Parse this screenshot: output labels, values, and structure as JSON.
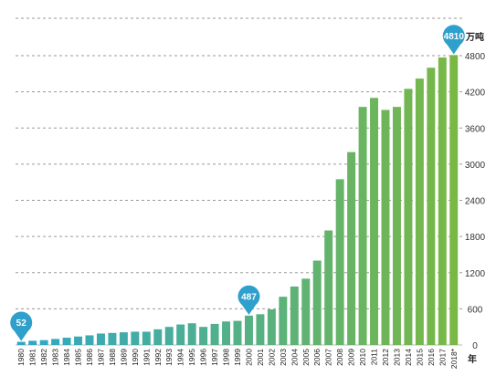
{
  "chart_data": {
    "type": "bar",
    "categories": [
      "1980",
      "1981",
      "1982",
      "1983",
      "1984",
      "1985",
      "1986",
      "1987",
      "1988",
      "1989",
      "1990",
      "1991",
      "1992",
      "1993",
      "1994",
      "1995",
      "1996",
      "1997",
      "1998",
      "1999",
      "2000",
      "2001",
      "2002",
      "2003",
      "2004",
      "2005",
      "2006",
      "2007",
      "2008",
      "2009",
      "2010",
      "2011",
      "2012",
      "2013",
      "2014",
      "2015",
      "2016",
      "2017",
      "2018*"
    ],
    "values": [
      52,
      70,
      80,
      100,
      120,
      140,
      160,
      190,
      200,
      210,
      220,
      220,
      260,
      300,
      340,
      360,
      300,
      350,
      390,
      400,
      487,
      510,
      590,
      800,
      970,
      1100,
      1400,
      1900,
      2750,
      3200,
      3950,
      4100,
      3900,
      3950,
      4250,
      4420,
      4600,
      4770,
      4810
    ],
    "ylim": [
      0,
      4800
    ],
    "yticks": [
      0,
      600,
      1200,
      1800,
      2400,
      3000,
      3600,
      4200,
      4800
    ],
    "y_unit": "万吨",
    "x_unit": "年",
    "grid": true,
    "axis_side": "right",
    "colors": {
      "bar_start": "#2ea8c8",
      "bar_end": "#7ab845",
      "callout": "#2fa0cc",
      "grid": "#9a9a9a"
    },
    "annotations": [
      {
        "category": "1980",
        "label": "52"
      },
      {
        "category": "2000",
        "label": "487"
      },
      {
        "category": "2018*",
        "label": "4810"
      }
    ]
  }
}
